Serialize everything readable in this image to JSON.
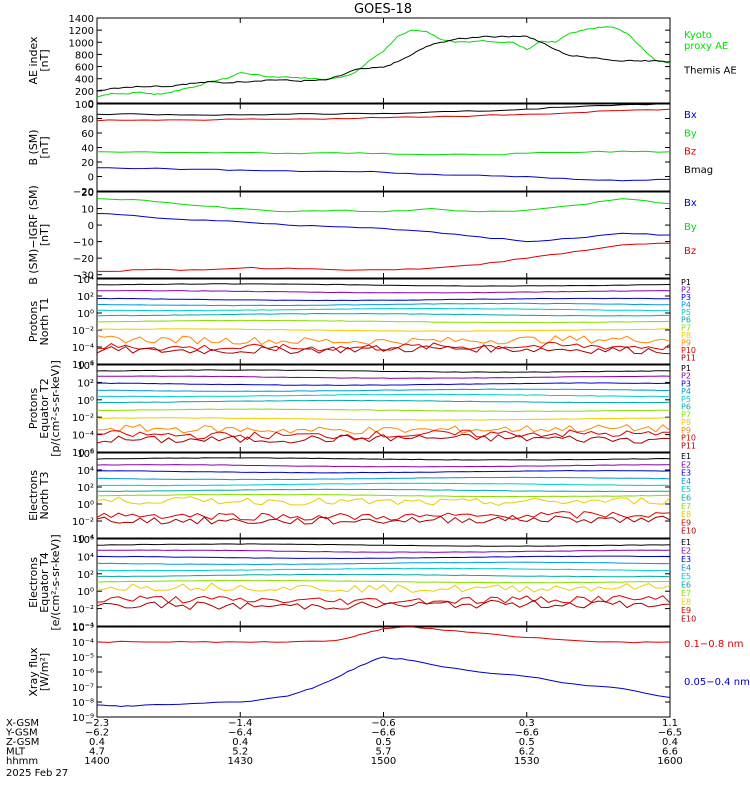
{
  "title": "GOES-18",
  "colors": {
    "black": "#000000",
    "blue": "#0000cc",
    "green": "#00dd00",
    "red": "#dd0000",
    "dkred": "#aa0000",
    "orange": "#ff8800",
    "yellow": "#eecc00",
    "lime": "#88dd00",
    "cyan": "#00cccc",
    "teal": "#00aaaa",
    "skyblue": "#0099dd",
    "violet": "#8800aa"
  },
  "chart_data": [
    {
      "id": "ae",
      "type": "line",
      "ylabel": "AE index\n[nT]",
      "ylim": [
        0,
        1400
      ],
      "ticks": [
        "1400",
        "1200",
        "1000",
        "800",
        "600",
        "400",
        "200",
        "0"
      ],
      "tick_values": [
        1400,
        1200,
        1000,
        800,
        600,
        400,
        200,
        0
      ],
      "legend": [
        {
          "text": "Kyoto\nproxy AE",
          "color": "#00dd00"
        },
        {
          "text": "Themis AE",
          "color": "#000000"
        }
      ],
      "series": [
        {
          "color": "#00dd00",
          "x": [
            0,
            3,
            6,
            9,
            12,
            15,
            18,
            21,
            24,
            27,
            30,
            33,
            36,
            39,
            42,
            45,
            48,
            51,
            54,
            57,
            60,
            63,
            66,
            69,
            72,
            75,
            78,
            81,
            84,
            87,
            90,
            93,
            96,
            99,
            102,
            105,
            108,
            111,
            114,
            117,
            120
          ],
          "y": [
            100,
            160,
            150,
            180,
            140,
            170,
            230,
            280,
            360,
            400,
            500,
            470,
            430,
            430,
            420,
            400,
            390,
            420,
            500,
            700,
            850,
            1100,
            1200,
            1180,
            1050,
            1000,
            1000,
            1030,
            1000,
            1000,
            880,
            1020,
            1000,
            1150,
            1200,
            1250,
            1250,
            1150,
            920,
            700,
            660
          ]
        },
        {
          "color": "#000000",
          "x": [
            0,
            3,
            6,
            9,
            12,
            15,
            18,
            21,
            24,
            27,
            30,
            33,
            36,
            39,
            42,
            45,
            48,
            51,
            54,
            57,
            60,
            63,
            66,
            69,
            72,
            75,
            78,
            81,
            84,
            87,
            90,
            93,
            96,
            99,
            102,
            105,
            108,
            111,
            114,
            117,
            120
          ],
          "y": [
            200,
            240,
            260,
            270,
            280,
            270,
            310,
            330,
            350,
            330,
            350,
            360,
            380,
            380,
            360,
            370,
            380,
            450,
            550,
            570,
            590,
            680,
            800,
            930,
            1000,
            1050,
            1070,
            1100,
            1090,
            1100,
            1100,
            1000,
            880,
            780,
            760,
            740,
            700,
            700,
            690,
            700,
            680
          ]
        }
      ]
    },
    {
      "id": "bsm",
      "type": "line",
      "ylabel": "B (SM)\n[nT]",
      "ylim": [
        -20,
        100
      ],
      "ticks": [
        "100",
        "80",
        "60",
        "40",
        "20",
        "0",
        "−20"
      ],
      "tick_values": [
        100,
        80,
        60,
        40,
        20,
        0,
        -20
      ],
      "legend": [
        {
          "text": "Bx",
          "color": "#0000cc"
        },
        {
          "text": "By",
          "color": "#00dd00"
        },
        {
          "text": "Bz",
          "color": "#dd0000"
        },
        {
          "text": "Bmag",
          "color": "#000000"
        }
      ],
      "series": [
        {
          "color": "#000000",
          "x": [
            0,
            10,
            20,
            30,
            40,
            50,
            60,
            70,
            80,
            90,
            100,
            110,
            120
          ],
          "y": [
            86,
            86,
            85,
            85,
            86,
            86,
            87,
            89,
            90,
            93,
            96,
            99,
            100
          ]
        },
        {
          "color": "#dd0000",
          "x": [
            0,
            10,
            20,
            30,
            40,
            50,
            60,
            70,
            80,
            90,
            100,
            110,
            120
          ],
          "y": [
            77,
            78,
            78,
            79,
            79,
            80,
            81,
            82,
            84,
            86,
            88,
            91,
            93
          ]
        },
        {
          "color": "#00dd00",
          "x": [
            0,
            10,
            20,
            30,
            40,
            50,
            60,
            70,
            80,
            90,
            100,
            110,
            120
          ],
          "y": [
            34,
            34,
            33,
            33,
            32,
            33,
            32,
            30,
            30,
            32,
            33,
            35,
            34
          ]
        },
        {
          "color": "#0000cc",
          "x": [
            0,
            10,
            20,
            30,
            40,
            50,
            60,
            70,
            80,
            90,
            100,
            110,
            120
          ],
          "y": [
            12,
            11,
            10,
            9,
            8,
            7,
            6,
            3,
            2,
            0,
            -4,
            -6,
            -4
          ]
        }
      ]
    },
    {
      "id": "bigrf",
      "type": "line",
      "ylabel": "B (SM)−IGRF (SM)\n[nT]",
      "ylim": [
        -32,
        20
      ],
      "ticks": [
        "20",
        "10",
        "0",
        "−10",
        "−20",
        "−30"
      ],
      "tick_values": [
        20,
        10,
        0,
        -10,
        -20,
        -30
      ],
      "legend": [
        {
          "text": "Bx",
          "color": "#0000cc"
        },
        {
          "text": "By",
          "color": "#00dd00"
        },
        {
          "text": "Bz",
          "color": "#dd0000"
        }
      ],
      "series": [
        {
          "color": "#00dd00",
          "x": [
            0,
            10,
            20,
            30,
            40,
            50,
            60,
            70,
            80,
            90,
            100,
            110,
            120
          ],
          "y": [
            16,
            15,
            12,
            10,
            8,
            9,
            8,
            10,
            8,
            9,
            12,
            16,
            13
          ]
        },
        {
          "color": "#0000cc",
          "x": [
            0,
            10,
            20,
            30,
            40,
            50,
            60,
            70,
            80,
            90,
            100,
            110,
            120
          ],
          "y": [
            7,
            5,
            3,
            2,
            0,
            -1,
            -2,
            -4,
            -7,
            -10,
            -8,
            -5,
            -6
          ]
        },
        {
          "color": "#dd0000",
          "x": [
            0,
            10,
            20,
            30,
            40,
            50,
            60,
            70,
            80,
            90,
            100,
            110,
            120
          ],
          "y": [
            -28,
            -27,
            -27,
            -26,
            -26,
            -27,
            -27,
            -26,
            -24,
            -20,
            -16,
            -12,
            -11
          ]
        }
      ]
    },
    {
      "id": "p_n",
      "type": "log-lines",
      "ylabel": "Protons\nNorth T1",
      "ylim": [
        -6,
        4
      ],
      "ticks": [
        "10⁴",
        "10²",
        "10⁰",
        "10⁻²",
        "10⁻⁴",
        "10⁻⁶"
      ],
      "tick_values": [
        4,
        2,
        0,
        -2,
        -4,
        -6
      ],
      "legend": [
        {
          "text": "P1",
          "color": "#000000"
        },
        {
          "text": "P2",
          "color": "#8800aa"
        },
        {
          "text": "P3",
          "color": "#0000cc"
        },
        {
          "text": "P4",
          "color": "#0099dd"
        },
        {
          "text": "P5",
          "color": "#00cccc"
        },
        {
          "text": "P6",
          "color": "#00aaaa"
        },
        {
          "text": "P7",
          "color": "#88dd00"
        },
        {
          "text": "P8",
          "color": "#eecc00"
        },
        {
          "text": "P9",
          "color": "#ff8800"
        },
        {
          "text": "P10",
          "color": "#dd0000"
        },
        {
          "text": "P11",
          "color": "#aa0000"
        }
      ],
      "levels": [
        3.3,
        2.5,
        1.6,
        1.0,
        0.4,
        -0.2,
        -1.0,
        -2.0,
        -3.2,
        -4.0,
        -4.3
      ]
    },
    {
      "id": "p_e",
      "type": "log-lines",
      "ylabel": "Protons\nEquator T2\n[p/(cm²-s-sr-keV)]",
      "ylim": [
        -6,
        4
      ],
      "ticks": [
        "10⁴",
        "10²",
        "10⁰",
        "10⁻²",
        "10⁻⁴",
        "10⁻⁶"
      ],
      "tick_values": [
        4,
        2,
        0,
        -2,
        -4,
        -6
      ],
      "legend": [
        {
          "text": "P1",
          "color": "#000000"
        },
        {
          "text": "P2",
          "color": "#8800aa"
        },
        {
          "text": "P3",
          "color": "#0000cc"
        },
        {
          "text": "P4",
          "color": "#0099dd"
        },
        {
          "text": "P5",
          "color": "#00cccc"
        },
        {
          "text": "P6",
          "color": "#00aaaa"
        },
        {
          "text": "P7",
          "color": "#88dd00"
        },
        {
          "text": "P8",
          "color": "#eecc00"
        },
        {
          "text": "P9",
          "color": "#ff8800"
        },
        {
          "text": "P10",
          "color": "#dd0000"
        },
        {
          "text": "P11",
          "color": "#aa0000"
        }
      ],
      "levels": [
        3.3,
        2.6,
        1.8,
        1.1,
        0.5,
        -0.2,
        -1.2,
        -2.2,
        -3.4,
        -4.0,
        -4.5
      ]
    },
    {
      "id": "e_n",
      "type": "log-lines",
      "ylabel": "Electrons\nNorth T3",
      "ylim": [
        -4,
        6
      ],
      "ticks": [
        "10⁶",
        "10⁴",
        "10²",
        "10⁰",
        "10⁻²",
        "10⁻⁴"
      ],
      "tick_values": [
        6,
        4,
        2,
        0,
        -2,
        -4
      ],
      "legend": [
        {
          "text": "E1",
          "color": "#000000"
        },
        {
          "text": "E2",
          "color": "#8800aa"
        },
        {
          "text": "E3",
          "color": "#0000cc"
        },
        {
          "text": "E4",
          "color": "#0099dd"
        },
        {
          "text": "E5",
          "color": "#00cccc"
        },
        {
          "text": "E6",
          "color": "#00aaaa"
        },
        {
          "text": "E7",
          "color": "#88dd00"
        },
        {
          "text": "E8",
          "color": "#eecc00"
        },
        {
          "text": "E9",
          "color": "#dd0000"
        },
        {
          "text": "E10",
          "color": "#aa0000"
        }
      ],
      "levels": [
        5.3,
        4.5,
        3.8,
        3.0,
        2.3,
        1.6,
        1.0,
        0.3,
        -1.4,
        -1.9
      ]
    },
    {
      "id": "e_e",
      "type": "log-lines",
      "ylabel": "Electrons\nEquator T4\n[e/(cm²-s-sr-keV)]",
      "ylim": [
        -4,
        6
      ],
      "ticks": [
        "10⁶",
        "10⁴",
        "10²",
        "10⁰",
        "10⁻²",
        "10⁻⁴"
      ],
      "tick_values": [
        6,
        4,
        2,
        0,
        -2,
        -4
      ],
      "legend": [
        {
          "text": "E1",
          "color": "#000000"
        },
        {
          "text": "E2",
          "color": "#8800aa"
        },
        {
          "text": "E3",
          "color": "#0000cc"
        },
        {
          "text": "E4",
          "color": "#0099dd"
        },
        {
          "text": "E5",
          "color": "#00cccc"
        },
        {
          "text": "E6",
          "color": "#00aaaa"
        },
        {
          "text": "E7",
          "color": "#88dd00"
        },
        {
          "text": "E8",
          "color": "#eecc00"
        },
        {
          "text": "E9",
          "color": "#dd0000"
        },
        {
          "text": "E10",
          "color": "#aa0000"
        }
      ],
      "levels": [
        5.3,
        4.6,
        3.9,
        3.2,
        2.5,
        1.8,
        1.1,
        0.4,
        -1.0,
        -1.6
      ]
    },
    {
      "id": "xray",
      "type": "line",
      "ylabel": "Xray flux\n[W/m²]",
      "ylim": [
        -9,
        -3
      ],
      "ticks": [
        "10⁻³",
        "10⁻⁴",
        "10⁻⁵",
        "10⁻⁶",
        "10⁻⁷",
        "10⁻⁸",
        "10⁻⁹"
      ],
      "tick_values": [
        -3,
        -4,
        -5,
        -6,
        -7,
        -8,
        -9
      ],
      "legend": [
        {
          "text": "0.1−0.8 nm",
          "color": "#dd0000"
        },
        {
          "text": "0.05−0.4 nm",
          "color": "#0000cc"
        }
      ],
      "series": [
        {
          "color": "#dd0000",
          "x": [
            0,
            10,
            20,
            30,
            40,
            50,
            55,
            60,
            65,
            70,
            80,
            90,
            100,
            110,
            120
          ],
          "y": [
            -4.0,
            -4.0,
            -4.0,
            -4.0,
            -4.0,
            -3.9,
            -3.5,
            -3.1,
            -3.0,
            -3.1,
            -3.4,
            -3.7,
            -3.9,
            -4.0,
            -4.0
          ]
        },
        {
          "color": "#0000cc",
          "x": [
            0,
            5,
            10,
            20,
            30,
            40,
            45,
            50,
            55,
            60,
            65,
            70,
            80,
            90,
            100,
            110,
            120
          ],
          "y": [
            -8.2,
            -8.3,
            -8.2,
            -8.1,
            -8.0,
            -7.6,
            -7.1,
            -6.4,
            -5.6,
            -5.0,
            -5.2,
            -5.5,
            -6.0,
            -6.3,
            -6.8,
            -7.1,
            -7.7
          ]
        }
      ]
    }
  ],
  "xaxis": {
    "rows": [
      {
        "label": "X-GSM",
        "values": [
          "−2.3",
          "−1.4",
          "−0.6",
          "0.3",
          "1.1"
        ]
      },
      {
        "label": "Y-GSM",
        "values": [
          "−6.2",
          "−6.4",
          "−6.6",
          "−6.6",
          "−6.5"
        ]
      },
      {
        "label": "Z-GSM",
        "values": [
          "0.4",
          "0.4",
          "0.5",
          "0.5",
          "0.4"
        ]
      },
      {
        "label": "MLT",
        "values": [
          "4.7",
          "5.2",
          "5.7",
          "6.2",
          "6.6"
        ]
      },
      {
        "label": "hhmm",
        "values": [
          "1400",
          "1430",
          "1500",
          "1530",
          "1600"
        ]
      }
    ],
    "date": "2025 Feb 27"
  }
}
